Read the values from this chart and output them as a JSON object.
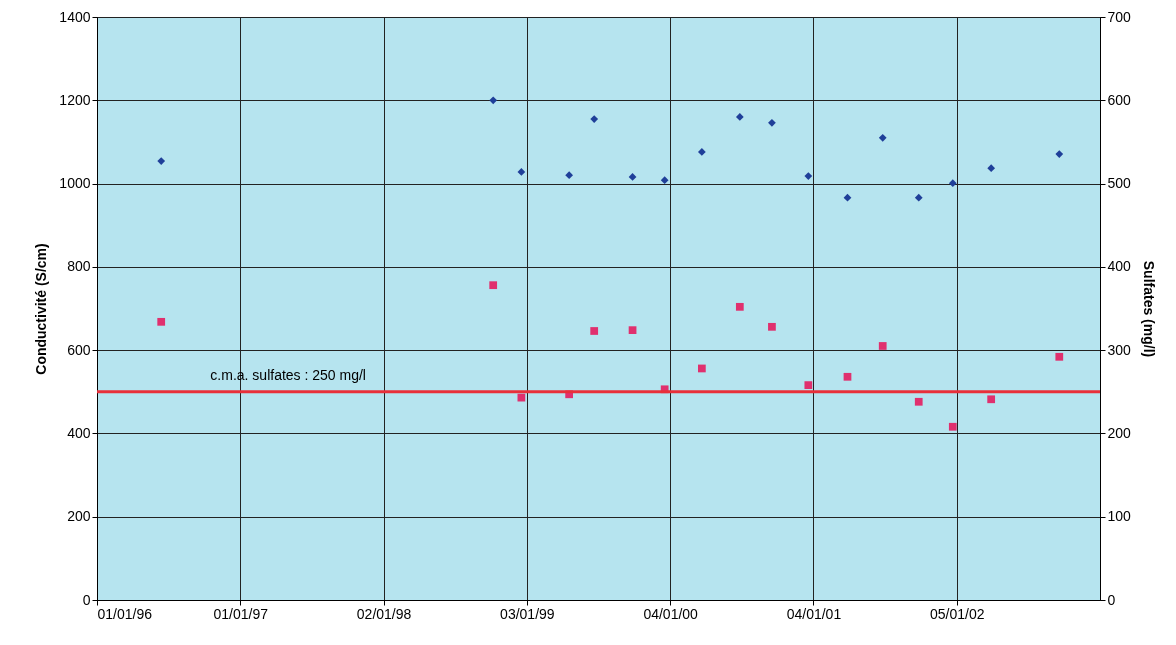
{
  "chart_data": {
    "type": "scatter",
    "xlabel": null,
    "ylabel": "Conductivité (S/cm)",
    "y2label": "Sulfates (mg/l)",
    "xlim": [
      "1996-01-01",
      "2003-01-06"
    ],
    "xticks": [
      {
        "value": "1996-01-01",
        "label": "01/01/96"
      },
      {
        "value": "1997-01-01",
        "label": "01/01/97"
      },
      {
        "value": "1998-01-02",
        "label": "02/01/98"
      },
      {
        "value": "1999-01-03",
        "label": "03/01/99"
      },
      {
        "value": "2000-01-04",
        "label": "04/01/00"
      },
      {
        "value": "2001-01-04",
        "label": "04/01/01"
      },
      {
        "value": "2002-01-05",
        "label": "05/01/02"
      }
    ],
    "ylim": [
      0,
      1400
    ],
    "yticks": [
      0,
      200,
      400,
      600,
      800,
      1000,
      1200,
      1400
    ],
    "y2lim": [
      0,
      700
    ],
    "y2ticks": [
      0,
      100,
      200,
      300,
      400,
      500,
      600,
      700
    ],
    "x": [
      "1996-06-13",
      "1998-10-09",
      "1998-12-20",
      "1999-04-21",
      "1999-06-24",
      "1999-09-30",
      "1999-12-21",
      "2000-03-25",
      "2000-06-30",
      "2000-09-20",
      "2000-12-22",
      "2001-04-01",
      "2001-06-30",
      "2001-09-30",
      "2001-12-26",
      "2002-04-03",
      "2002-09-24"
    ],
    "series": [
      {
        "color": "#1f3f99",
        "marker": "diamond",
        "values": [
          1054,
          1200,
          1028,
          1020,
          1155,
          1016,
          1008,
          1076,
          1160,
          1146,
          1018,
          966,
          1110,
          966,
          1001,
          1037,
          1071
        ]
      },
      {
        "color": "#e0306e",
        "marker": "square",
        "axis": "y2",
        "values": [
          334,
          378,
          243,
          247,
          323,
          324,
          253,
          278,
          352,
          328,
          258,
          268,
          305,
          238,
          208,
          241,
          292
        ]
      }
    ],
    "ref_lines": [
      {
        "axis": "y2",
        "value": 250,
        "label": "c.m.a. sulfates : 250 mg/l",
        "color": "#e8303a"
      }
    ],
    "grid": true
  }
}
